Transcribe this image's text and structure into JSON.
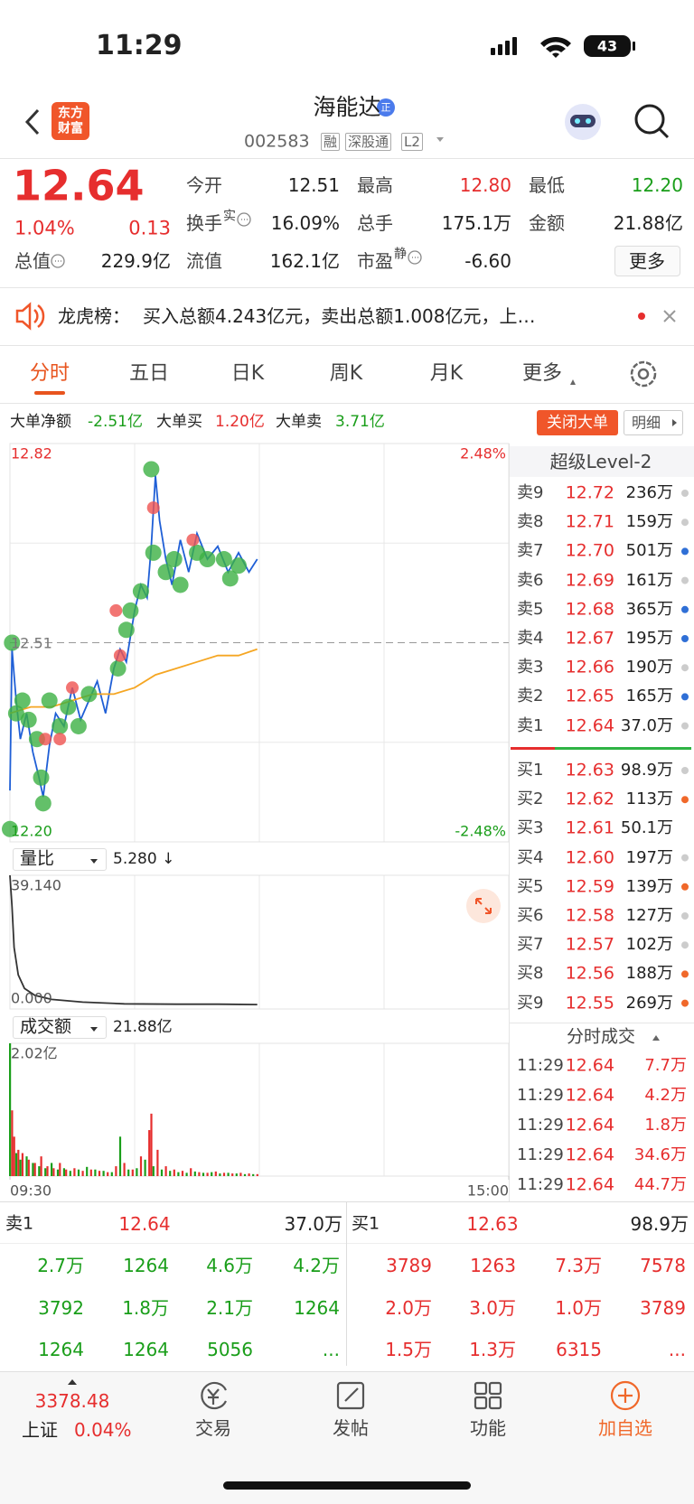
{
  "status": {
    "time": "11:29",
    "battery": "43"
  },
  "header": {
    "logo": [
      "东方",
      "财富"
    ],
    "title": "海能达",
    "badge": "正",
    "code": "002583",
    "tags": [
      "融",
      "深股通",
      "L2"
    ]
  },
  "quote": {
    "price": "12.64",
    "change_pct": "1.04%",
    "change": "0.13",
    "fields": [
      {
        "label": "今开",
        "value": "12.51"
      },
      {
        "label": "最高",
        "value": "12.80",
        "color": "#e62e2e"
      },
      {
        "label": "最低",
        "value": "12.20",
        "color": "#1a9e1a"
      },
      {
        "label": "换手",
        "sup": "实",
        "info": true,
        "value": "16.09%"
      },
      {
        "label": "总手",
        "value": "175.1万"
      },
      {
        "label": "金额",
        "value": "21.88亿"
      },
      {
        "label": "总值",
        "info": true,
        "value": "229.9亿"
      },
      {
        "label": "流值",
        "value": "162.1亿"
      },
      {
        "label": "市盈",
        "sup": "静",
        "info": true,
        "value": "-6.60"
      }
    ],
    "more": "更多"
  },
  "banner": {
    "label": "龙虎榜：",
    "text": "买入总额4.243亿元，卖出总额1.008亿元，上…"
  },
  "tabs": {
    "items": [
      "分时",
      "五日",
      "日K",
      "周K",
      "月K",
      "更多"
    ],
    "active": 0
  },
  "big_orders": {
    "items": [
      {
        "label": "大单净额",
        "value": "-2.51亿",
        "color": "#1a9e1a"
      },
      {
        "label": "大单买",
        "value": "1.20亿",
        "color": "#e62e2e"
      },
      {
        "label": "大单卖",
        "value": "3.71亿",
        "color": "#1a9e1a"
      }
    ],
    "close": "关闭大单",
    "detail": "明细"
  },
  "chart_data": [
    {
      "type": "line",
      "xlim": [
        0,
        240
      ],
      "ylim": [
        12.2,
        12.82
      ],
      "yticks": [
        12.82,
        12.51,
        {
          "value": 12.2,
          "label": "12.20"
        }
      ],
      "y2lim": [
        -2.48,
        2.48
      ],
      "y2ticks": [
        {
          "value": 2.48,
          "label": "2.48%"
        },
        {
          "value": -2.48,
          "label": "-2.48%"
        }
      ],
      "series": [
        {
          "color": "#1f5fd6",
          "x": [
            0,
            1,
            3,
            5,
            8,
            11,
            14,
            16,
            19,
            22,
            26,
            30,
            34,
            38,
            42,
            46,
            50,
            53,
            56,
            60,
            63,
            66,
            68,
            70,
            72,
            75,
            78,
            82,
            86,
            90,
            95,
            100,
            105,
            110,
            115,
            119
          ],
          "values": [
            12.28,
            12.5,
            12.42,
            12.36,
            12.4,
            12.34,
            12.3,
            12.27,
            12.35,
            12.4,
            12.38,
            12.44,
            12.39,
            12.42,
            12.45,
            12.4,
            12.47,
            12.5,
            12.48,
            12.56,
            12.6,
            12.58,
            12.66,
            12.77,
            12.7,
            12.64,
            12.6,
            12.67,
            12.62,
            12.68,
            12.64,
            12.66,
            12.62,
            12.65,
            12.62,
            12.64
          ]
        },
        {
          "color": "#f5a623",
          "x": [
            0,
            10,
            20,
            30,
            40,
            50,
            60,
            70,
            80,
            90,
            100,
            110,
            119
          ],
          "values": [
            12.4,
            12.41,
            12.41,
            12.42,
            12.43,
            12.43,
            12.44,
            12.46,
            12.47,
            12.48,
            12.49,
            12.49,
            12.5
          ]
        }
      ],
      "bubbles": [
        {
          "color": "#3cb043",
          "x": [
            0,
            1,
            3,
            6,
            9,
            13,
            15,
            16,
            19,
            24,
            28,
            33,
            38,
            52,
            56,
            58,
            63,
            68,
            69,
            75,
            79,
            82,
            90,
            95,
            103,
            106,
            110
          ],
          "values": [
            12.22,
            12.51,
            12.4,
            12.42,
            12.39,
            12.36,
            12.3,
            12.26,
            12.42,
            12.38,
            12.41,
            12.38,
            12.43,
            12.47,
            12.53,
            12.56,
            12.59,
            12.78,
            12.65,
            12.62,
            12.64,
            12.6,
            12.65,
            12.64,
            12.64,
            12.61,
            12.63
          ]
        },
        {
          "color": "#ef5350",
          "x": [
            17,
            24,
            30,
            51,
            53,
            69,
            88
          ],
          "values": [
            12.36,
            12.36,
            12.44,
            12.56,
            12.49,
            12.72,
            12.67
          ]
        }
      ]
    },
    {
      "type": "line",
      "selector": "量比",
      "current": "5.280 ↓",
      "xlim": [
        0,
        240
      ],
      "ylim": [
        0,
        39.14
      ],
      "yticks": [
        {
          "value": 39.14,
          "label": "39.140"
        },
        {
          "value": 0,
          "label": "0.000"
        }
      ],
      "series": [
        {
          "color": "#333333",
          "x": [
            0,
            1,
            2,
            4,
            7,
            12,
            20,
            35,
            55,
            80,
            100,
            119
          ],
          "values": [
            39.14,
            30,
            18,
            10,
            6,
            4,
            2.8,
            2,
            1.5,
            1.4,
            1.4,
            1.3
          ]
        }
      ]
    },
    {
      "type": "bar",
      "selector": "成交额",
      "current": "21.88亿",
      "xlim": [
        0,
        240
      ],
      "ylim": [
        0,
        2.02
      ],
      "yticks": [
        {
          "value": 2.02,
          "label": "2.02亿"
        }
      ],
      "xticks": [
        {
          "value": 0,
          "label": "09:30"
        },
        {
          "value": 240,
          "label": "15:00"
        }
      ],
      "series": [
        {
          "color": "#e62e2e",
          "x": [
            1,
            2,
            4,
            6,
            9,
            12,
            15,
            18,
            21,
            24,
            27,
            31,
            35,
            39,
            43,
            47,
            51,
            55,
            59,
            63,
            67,
            68,
            71,
            75,
            79,
            83,
            87,
            91,
            95,
            99,
            103,
            107,
            111,
            115,
            119
          ],
          "values": [
            1.0,
            0.6,
            0.4,
            0.35,
            0.25,
            0.2,
            0.3,
            0.15,
            0.12,
            0.2,
            0.1,
            0.12,
            0.08,
            0.1,
            0.08,
            0.06,
            0.15,
            0.2,
            0.1,
            0.3,
            0.7,
            0.95,
            0.4,
            0.15,
            0.1,
            0.08,
            0.12,
            0.06,
            0.05,
            0.07,
            0.05,
            0.04,
            0.05,
            0.04,
            0.03
          ]
        },
        {
          "color": "#1a9e1a",
          "x": [
            0,
            3,
            5,
            8,
            11,
            14,
            17,
            20,
            23,
            26,
            29,
            33,
            37,
            41,
            45,
            49,
            53,
            57,
            61,
            65,
            69,
            73,
            77,
            81,
            85,
            89,
            93,
            97,
            101,
            105,
            109,
            113,
            117
          ],
          "values": [
            2.02,
            0.35,
            0.25,
            0.3,
            0.2,
            0.15,
            0.12,
            0.2,
            0.1,
            0.12,
            0.08,
            0.1,
            0.14,
            0.1,
            0.08,
            0.06,
            0.6,
            0.1,
            0.12,
            0.25,
            0.15,
            0.1,
            0.08,
            0.06,
            0.05,
            0.07,
            0.05,
            0.06,
            0.04,
            0.05,
            0.04,
            0.03,
            0.03
          ]
        }
      ]
    }
  ],
  "level2": {
    "title": "超级Level-2",
    "asks": [
      {
        "label": "卖9",
        "price": "12.72",
        "volume": "236万",
        "dot": "#cccccc"
      },
      {
        "label": "卖8",
        "price": "12.71",
        "volume": "159万",
        "dot": "#cccccc"
      },
      {
        "label": "卖7",
        "price": "12.70",
        "volume": "501万",
        "dot": "#2f6fd6"
      },
      {
        "label": "卖6",
        "price": "12.69",
        "volume": "161万",
        "dot": "#cccccc"
      },
      {
        "label": "卖5",
        "price": "12.68",
        "volume": "365万",
        "dot": "#2f6fd6"
      },
      {
        "label": "卖4",
        "price": "12.67",
        "volume": "195万",
        "dot": "#2f6fd6"
      },
      {
        "label": "卖3",
        "price": "12.66",
        "volume": "190万",
        "dot": "#cccccc"
      },
      {
        "label": "卖2",
        "price": "12.65",
        "volume": "165万",
        "dot": "#2f6fd6"
      },
      {
        "label": "卖1",
        "price": "12.64",
        "volume": "37.0万",
        "dot": "#cccccc"
      }
    ],
    "bids": [
      {
        "label": "买1",
        "price": "12.63",
        "volume": "98.9万",
        "dot": "#cccccc"
      },
      {
        "label": "买2",
        "price": "12.62",
        "volume": "113万",
        "dot": "#f0682a"
      },
      {
        "label": "买3",
        "price": "12.61",
        "volume": "50.1万"
      },
      {
        "label": "买4",
        "price": "12.60",
        "volume": "197万",
        "dot": "#cccccc"
      },
      {
        "label": "买5",
        "price": "12.59",
        "volume": "139万",
        "dot": "#f0682a"
      },
      {
        "label": "买6",
        "price": "12.58",
        "volume": "127万",
        "dot": "#cccccc"
      },
      {
        "label": "买7",
        "price": "12.57",
        "volume": "102万",
        "dot": "#cccccc"
      },
      {
        "label": "买8",
        "price": "12.56",
        "volume": "188万",
        "dot": "#f0682a"
      },
      {
        "label": "买9",
        "price": "12.55",
        "volume": "269万",
        "dot": "#f0682a"
      }
    ]
  },
  "trades": {
    "title": "分时成交",
    "rows": [
      {
        "time": "11:29",
        "price": "12.64",
        "volume": "7.7万"
      },
      {
        "time": "11:29",
        "price": "12.64",
        "volume": "4.2万"
      },
      {
        "time": "11:29",
        "price": "12.64",
        "volume": "1.8万"
      },
      {
        "time": "11:29",
        "price": "12.64",
        "volume": "34.6万"
      },
      {
        "time": "11:29",
        "price": "12.64",
        "volume": "44.7万"
      }
    ]
  },
  "order_book": {
    "ask": {
      "label": "卖1",
      "price": "12.64",
      "volume": "37.0万"
    },
    "bid": {
      "label": "买1",
      "price": "12.63",
      "volume": "98.9万"
    },
    "ask_queue": [
      [
        "2.7万",
        "1264",
        "4.6万",
        "4.2万"
      ],
      [
        "3792",
        "1.8万",
        "2.1万",
        "1264"
      ],
      [
        "1264",
        "1264",
        "5056",
        "..."
      ]
    ],
    "bid_queue": [
      [
        "3789",
        "1263",
        "7.3万",
        "7578"
      ],
      [
        "2.0万",
        "3.0万",
        "1.0万",
        "3789"
      ],
      [
        "1.5万",
        "1.3万",
        "6315",
        "..."
      ]
    ]
  },
  "nav": {
    "index": {
      "value": "3378.48",
      "name": "上证",
      "change_pct": "0.04%"
    },
    "items": [
      "交易",
      "发帖",
      "功能",
      "加自选"
    ],
    "highlight": 3
  }
}
